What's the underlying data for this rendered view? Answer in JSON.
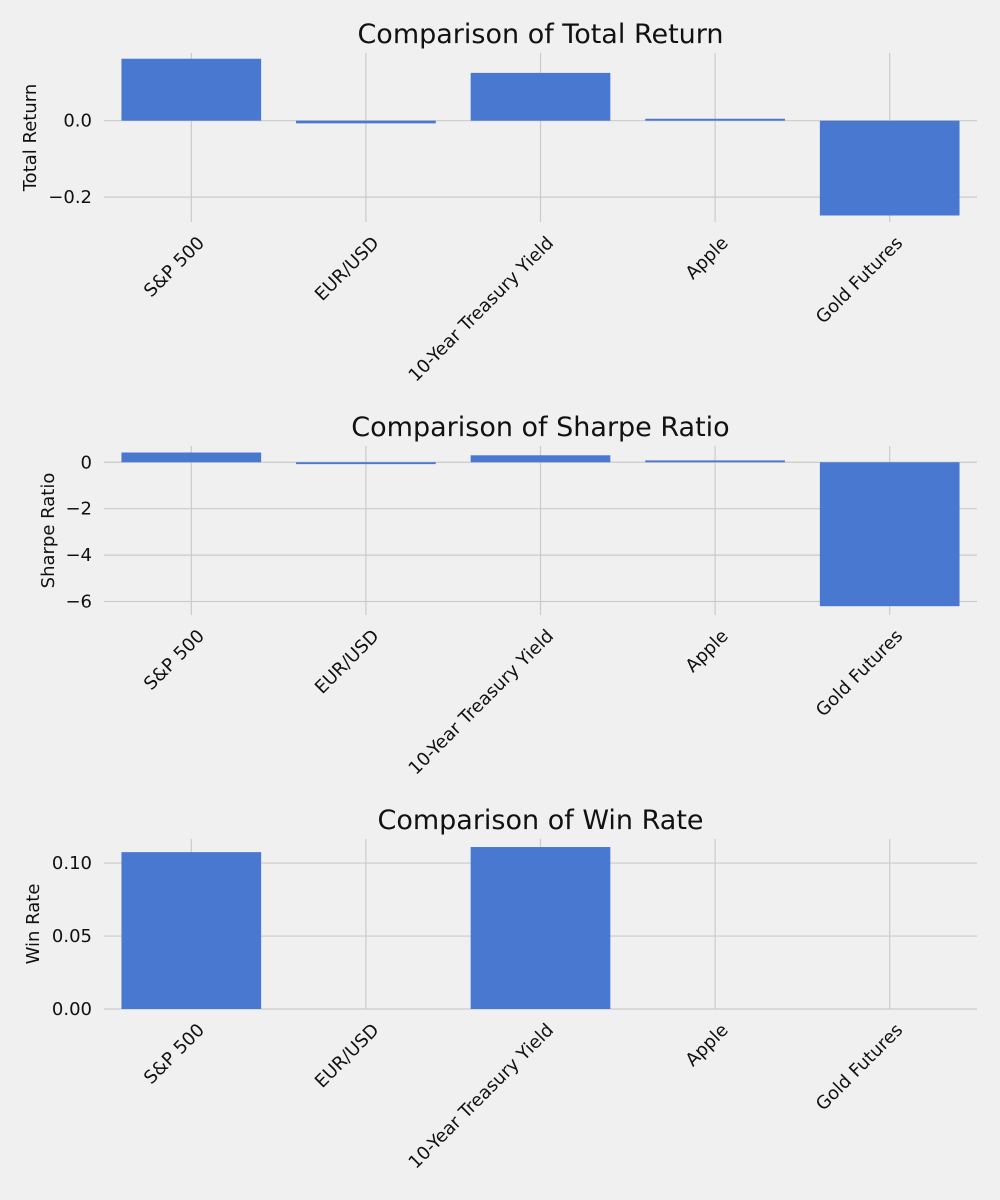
{
  "chart_data": [
    {
      "type": "bar",
      "title": "Comparison of Total Return",
      "xlabel": "",
      "ylabel": "Total Return",
      "categories": [
        "S&P 500",
        "EUR/USD",
        "10-Year Treasury Yield",
        "Apple",
        "Gold Futures"
      ],
      "values": [
        0.162,
        -0.007,
        0.125,
        0.005,
        -0.248
      ],
      "yticks": [
        0.0,
        -0.2
      ],
      "ytick_labels": [
        "0.0",
        "−0.2"
      ],
      "ylim": [
        -0.265,
        0.177
      ],
      "grid": true,
      "color": "#4878cf"
    },
    {
      "type": "bar",
      "title": "Comparison of Sharpe Ratio",
      "xlabel": "",
      "ylabel": "Sharpe Ratio",
      "categories": [
        "S&P 500",
        "EUR/USD",
        "10-Year Treasury Yield",
        "Apple",
        "Gold Futures"
      ],
      "values": [
        0.42,
        -0.08,
        0.3,
        0.08,
        -6.2
      ],
      "yticks": [
        0,
        -2,
        -4,
        -6
      ],
      "ytick_labels": [
        "0",
        "−2",
        "−4",
        "−6"
      ],
      "ylim": [
        -6.58,
        0.7
      ],
      "grid": true,
      "color": "#4878cf"
    },
    {
      "type": "bar",
      "title": "Comparison of Win Rate",
      "xlabel": "",
      "ylabel": "Win Rate",
      "categories": [
        "S&P 500",
        "EUR/USD",
        "10-Year Treasury Yield",
        "Apple",
        "Gold Futures"
      ],
      "values": [
        0.1075,
        0.0,
        0.111,
        0.0,
        0.0
      ],
      "yticks": [
        0.0,
        0.05,
        0.1
      ],
      "ytick_labels": [
        "0.00",
        "0.05",
        "0.10"
      ],
      "ylim": [
        0,
        0.1165
      ],
      "grid": true,
      "color": "#4878cf"
    }
  ]
}
